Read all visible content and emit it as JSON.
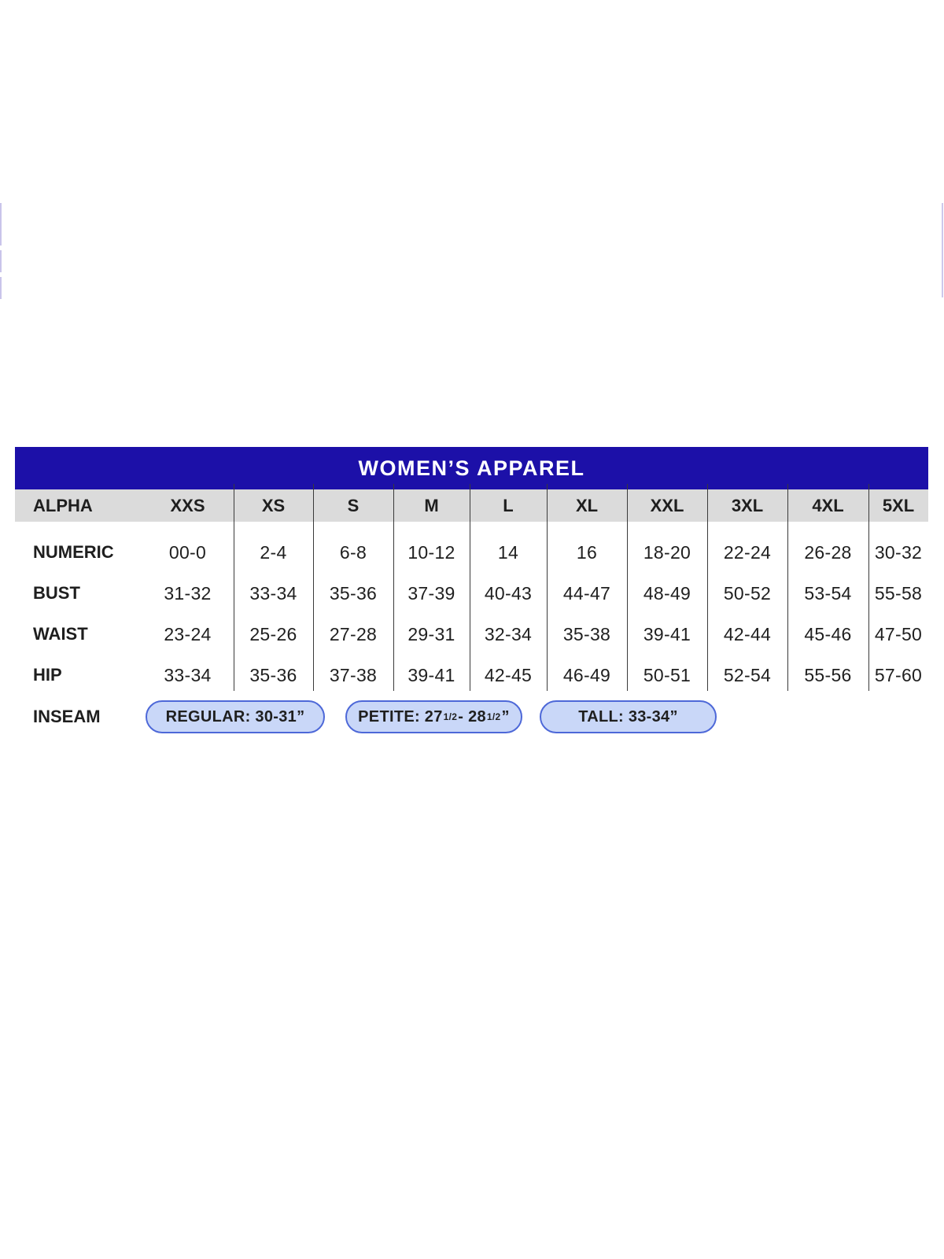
{
  "table": {
    "title": "WOMEN’S APPAREL",
    "header_label": "ALPHA",
    "sizes": [
      "XXS",
      "XS",
      "S",
      "M",
      "L",
      "XL",
      "XXL",
      "3XL",
      "4XL",
      "5XL"
    ],
    "rows": [
      {
        "label": "NUMERIC",
        "values": [
          "00-0",
          "2-4",
          "6-8",
          "10-12",
          "14",
          "16",
          "18-20",
          "22-24",
          "26-28",
          "30-32"
        ]
      },
      {
        "label": "BUST",
        "values": [
          "31-32",
          "33-34",
          "35-36",
          "37-39",
          "40-43",
          "44-47",
          "48-49",
          "50-52",
          "53-54",
          "55-58"
        ]
      },
      {
        "label": "WAIST",
        "values": [
          "23-24",
          "25-26",
          "27-28",
          "29-31",
          "32-34",
          "35-38",
          "39-41",
          "42-44",
          "45-46",
          "47-50"
        ]
      },
      {
        "label": "HIP",
        "values": [
          "33-34",
          "35-36",
          "37-38",
          "39-41",
          "42-45",
          "46-49",
          "50-51",
          "52-54",
          "55-56",
          "57-60"
        ]
      }
    ],
    "inseam": {
      "label": "INSEAM",
      "pills": [
        {
          "segments": [
            {
              "t": "REGULAR: 30-31”"
            }
          ]
        },
        {
          "segments": [
            {
              "t": "PETITE: 27 "
            },
            {
              "sup": "1/2"
            },
            {
              "t": " - 28 "
            },
            {
              "sup": "1/2"
            },
            {
              "t": "”"
            }
          ]
        },
        {
          "segments": [
            {
              "t": "TALL: 33-34”"
            }
          ]
        }
      ]
    },
    "colors": {
      "title_bar_bg": "#1c10a8",
      "title_text": "#ffffff",
      "header_row_bg": "#dbdbdb",
      "divider": "#3a3a3a",
      "pill_fill": "#c9d7f8",
      "pill_border": "#4d68d8",
      "text": "#1e1e1e"
    }
  }
}
